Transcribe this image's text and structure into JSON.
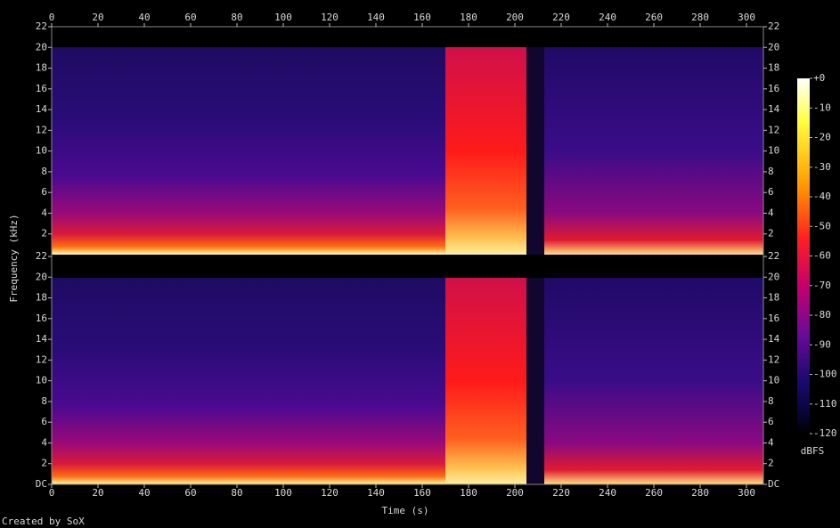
{
  "chart_data": {
    "type": "spectrogram",
    "x_label": "Time (s)",
    "y_label": "Frequency (kHz)",
    "credit": "Created by SoX",
    "xlim": [
      0,
      307.3
    ],
    "xticks": [
      0,
      20,
      40,
      60,
      80,
      100,
      120,
      140,
      160,
      180,
      200,
      220,
      240,
      260,
      280,
      300
    ],
    "panels": [
      {
        "ylim": [
          0,
          22
        ],
        "yticks": [
          2,
          4,
          6,
          8,
          10,
          12,
          14,
          16,
          18,
          20,
          22
        ]
      },
      {
        "ylim": [
          0,
          22
        ],
        "yticks": [
          {
            "value": 0,
            "label": "DC"
          },
          2,
          4,
          6,
          8,
          10,
          12,
          14,
          16,
          18,
          20,
          22
        ]
      }
    ],
    "colorbar": {
      "label": "dBFS",
      "lim": [
        -120,
        0
      ],
      "ticks": [
        {
          "value": 0,
          "label": "+0"
        },
        -10,
        -20,
        -30,
        -40,
        -50,
        -60,
        -70,
        -80,
        -90,
        -100,
        -110,
        -120
      ]
    }
  }
}
